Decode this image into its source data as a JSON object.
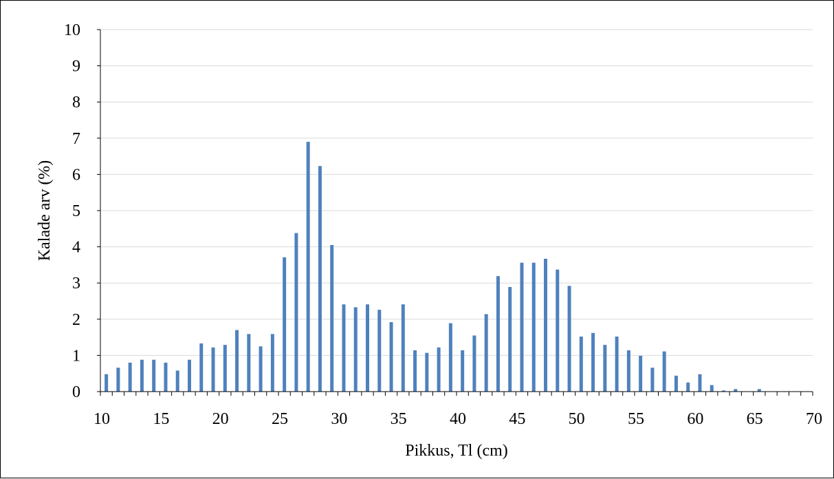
{
  "chart_data": {
    "type": "bar",
    "xlabel": "Pikkus, Tl (cm)",
    "ylabel": "Kalade arv (%)",
    "ylim": [
      0,
      10
    ],
    "xlim": [
      10,
      70
    ],
    "x_ticks": [
      10,
      15,
      20,
      25,
      30,
      35,
      40,
      45,
      50,
      55,
      60,
      65,
      70
    ],
    "y_ticks": [
      0,
      1,
      2,
      3,
      4,
      5,
      6,
      7,
      8,
      9,
      10
    ],
    "grid": true,
    "bar_color": "#4F81BD",
    "x": [
      10,
      11,
      12,
      13,
      14,
      15,
      16,
      17,
      18,
      19,
      20,
      21,
      22,
      23,
      24,
      25,
      26,
      27,
      28,
      29,
      30,
      31,
      32,
      33,
      34,
      35,
      36,
      37,
      38,
      39,
      40,
      41,
      42,
      43,
      44,
      45,
      46,
      47,
      48,
      49,
      50,
      51,
      52,
      53,
      54,
      55,
      56,
      57,
      58,
      59,
      60,
      61,
      62,
      63,
      64,
      65,
      66,
      67,
      68,
      69
    ],
    "values": [
      0.48,
      0.66,
      0.8,
      0.88,
      0.88,
      0.8,
      0.58,
      0.88,
      1.33,
      1.22,
      1.29,
      1.7,
      1.59,
      1.25,
      1.59,
      3.71,
      4.38,
      6.9,
      6.23,
      4.05,
      2.41,
      2.33,
      2.41,
      2.26,
      1.92,
      2.41,
      1.14,
      1.07,
      1.22,
      1.89,
      1.14,
      1.55,
      2.14,
      3.19,
      2.89,
      3.56,
      3.56,
      3.67,
      3.37,
      2.92,
      1.52,
      1.62,
      1.29,
      1.52,
      1.14,
      0.99,
      0.66,
      1.11,
      0.44,
      0.25,
      0.48,
      0.18,
      0.03,
      0.07,
      0.0,
      0.07,
      0.0,
      0.0,
      0.0,
      0.0
    ]
  }
}
